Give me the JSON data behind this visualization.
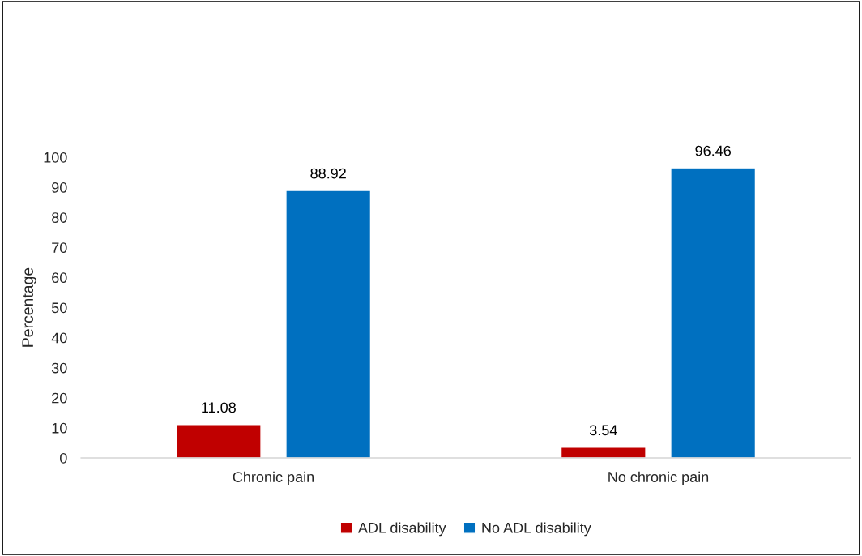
{
  "chart_data": {
    "type": "bar",
    "ylabel": "Percentage",
    "categories": [
      "Chronic pain",
      "No chronic pain"
    ],
    "series": [
      {
        "name": "ADL disability",
        "color": "#c00000",
        "values": [
          11.08,
          3.54
        ]
      },
      {
        "name": "No ADL disability",
        "color": "#0070c0",
        "values": [
          88.92,
          96.46
        ]
      }
    ],
    "ylim": [
      0,
      100
    ],
    "yticks": [
      0,
      10,
      20,
      30,
      40,
      50,
      60,
      70,
      80,
      90,
      100
    ],
    "data_labels": true,
    "grid": false,
    "legend": "bottom"
  }
}
